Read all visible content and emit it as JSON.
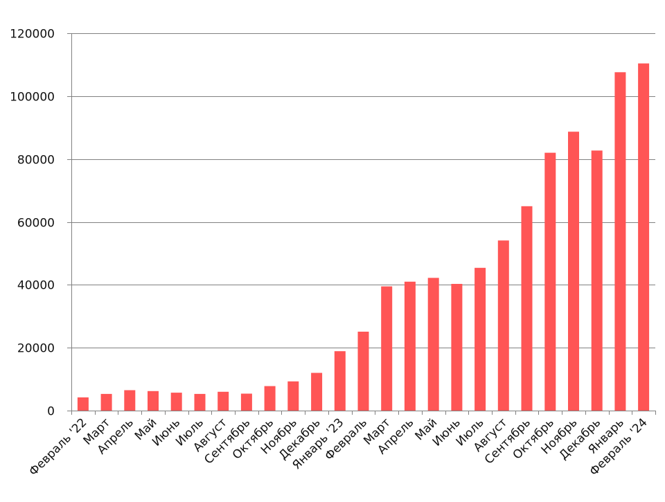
{
  "chart_data": {
    "type": "bar",
    "title": "",
    "xlabel": "",
    "ylabel": "",
    "categories": [
      "Февраль '22",
      "Март",
      "Апрель",
      "Май",
      "Июнь",
      "Июль",
      "Август",
      "Сентябрь",
      "Октябрь",
      "Ноябрь",
      "Декабрь",
      "Январь '23",
      "Февраль",
      "Март",
      "Апрель",
      "Май",
      "Июнь",
      "Июль",
      "Август",
      "Сентябрь",
      "Октябрь",
      "Ноябрь",
      "Декабрь",
      "Январь",
      "Февраль '24"
    ],
    "values": [
      4200,
      5300,
      6500,
      6200,
      5700,
      5300,
      6000,
      5400,
      7800,
      9300,
      12000,
      18900,
      25100,
      39500,
      41000,
      42200,
      40300,
      45400,
      54100,
      65000,
      82000,
      88700,
      82700,
      107600,
      110400
    ],
    "ylim": [
      0,
      120000
    ],
    "yticks": [
      0,
      20000,
      40000,
      60000,
      80000,
      100000,
      120000
    ],
    "ytick_labels": [
      "0",
      "20000",
      "40000",
      "60000",
      "80000",
      "100000",
      "120000"
    ],
    "grid": true,
    "legend": "none",
    "bar_color": "#ff5555",
    "grid_color": "#808080"
  }
}
